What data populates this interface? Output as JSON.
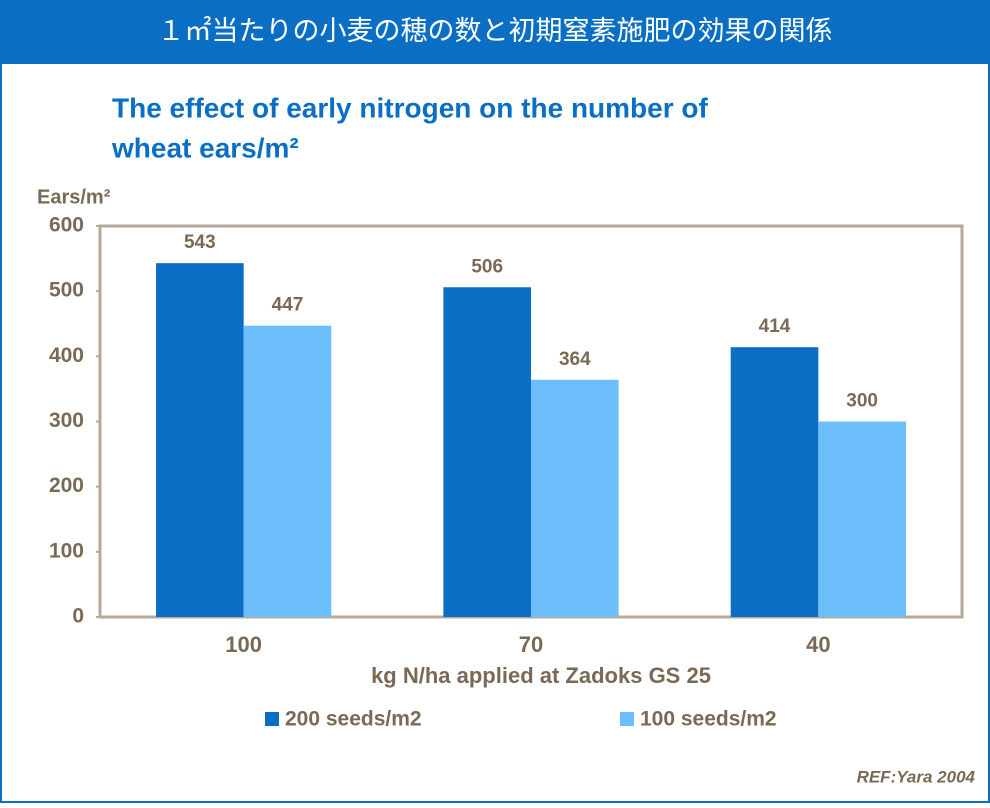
{
  "chart_data": {
    "type": "bar",
    "banner": "１㎡当たりの小麦の穂の数と初期窒素施肥の効果の関係",
    "title_line1": "The effect of early nitrogen on the number of",
    "title_line2": "wheat ears/m²",
    "y_label": "Ears/m²",
    "x_label": "kg N/ha applied at Zadoks GS 25",
    "reference": "REF:Yara 2004",
    "categories": [
      "100",
      "70",
      "40"
    ],
    "series": [
      {
        "name": "200 seeds/m2",
        "color": "#0a6fc4",
        "values": [
          543,
          506,
          414
        ]
      },
      {
        "name": "100 seeds/m2",
        "color": "#6cbffb",
        "values": [
          447,
          364,
          300
        ]
      }
    ],
    "ylim": [
      0,
      600
    ],
    "yticks": [
      0,
      100,
      200,
      300,
      400,
      500,
      600
    ]
  }
}
